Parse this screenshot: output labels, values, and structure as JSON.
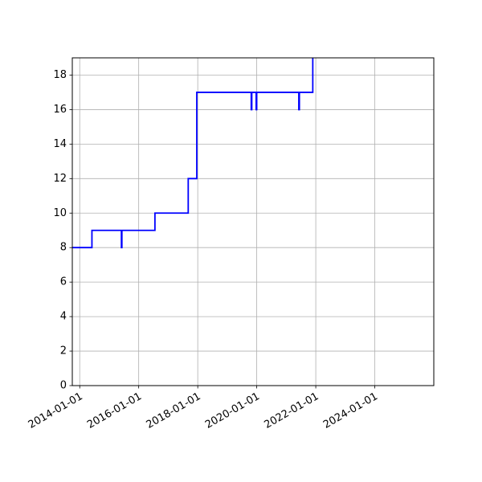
{
  "chart_data": {
    "type": "line",
    "title": "",
    "xlabel": "",
    "ylabel": "",
    "line_style": "step",
    "xlim": [
      "2013-10-01",
      "2026-01-01"
    ],
    "ylim": [
      0,
      19
    ],
    "grid": true,
    "legend": "none",
    "x_ticks": [
      "2014-01-01",
      "2016-01-01",
      "2018-01-01",
      "2020-01-01",
      "2022-01-01",
      "2024-01-01"
    ],
    "y_ticks": [
      0,
      2,
      4,
      6,
      8,
      10,
      12,
      14,
      16,
      18
    ],
    "series": [
      {
        "color": "#0000ff",
        "points": [
          [
            "2013-10-01",
            8
          ],
          [
            "2014-06-01",
            8
          ],
          [
            "2014-06-01",
            9
          ],
          [
            "2015-06-01",
            9
          ],
          [
            "2015-06-01",
            8
          ],
          [
            "2015-06-07",
            8
          ],
          [
            "2015-06-07",
            9
          ],
          [
            "2016-07-20",
            9
          ],
          [
            "2016-07-20",
            10
          ],
          [
            "2017-09-05",
            10
          ],
          [
            "2017-09-05",
            12
          ],
          [
            "2017-12-20",
            12
          ],
          [
            "2017-12-20",
            17
          ],
          [
            "2019-10-25",
            17
          ],
          [
            "2019-10-25",
            16
          ],
          [
            "2019-11-01",
            16
          ],
          [
            "2019-11-01",
            17
          ],
          [
            "2019-12-25",
            17
          ],
          [
            "2019-12-25",
            16
          ],
          [
            "2020-01-01",
            16
          ],
          [
            "2020-01-01",
            17
          ],
          [
            "2021-06-05",
            17
          ],
          [
            "2021-06-05",
            16
          ],
          [
            "2021-06-12",
            16
          ],
          [
            "2021-06-12",
            17
          ],
          [
            "2021-11-25",
            17
          ],
          [
            "2021-11-25",
            19
          ]
        ]
      }
    ]
  }
}
